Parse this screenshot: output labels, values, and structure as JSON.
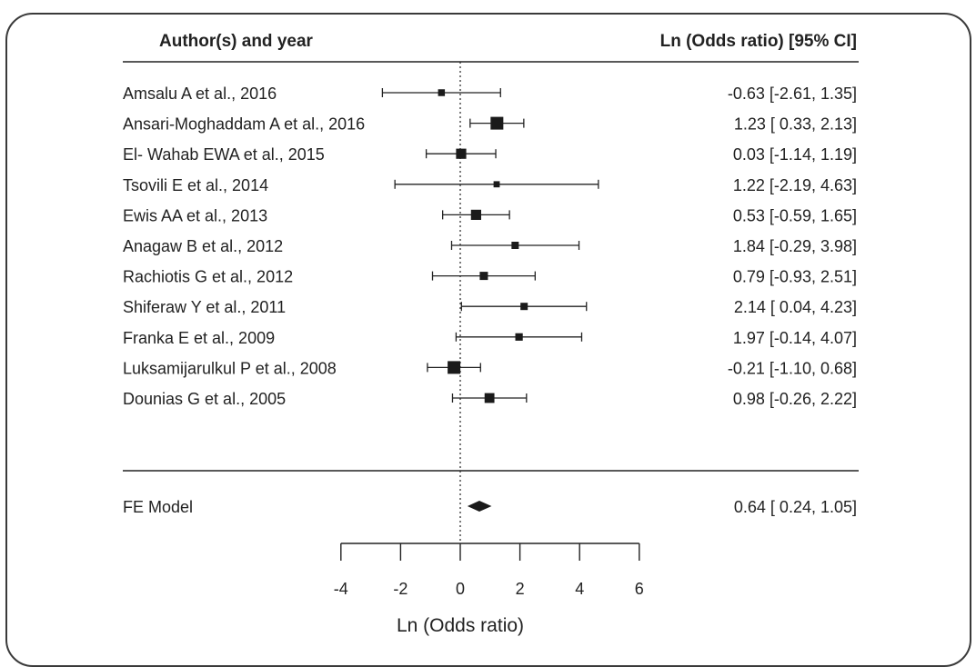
{
  "chart_data": {
    "type": "forest",
    "header_left": "Author(s) and year",
    "header_right": "Ln (Odds ratio) [95% CI]",
    "xlabel": "Ln (Odds ratio)",
    "xlim": [
      -4,
      6
    ],
    "xticks": [
      -4,
      -2,
      0,
      2,
      4,
      6
    ],
    "reference_line": 0,
    "studies": [
      {
        "label": "Amsalu A et al., 2016",
        "estimate": -0.63,
        "lower": -2.61,
        "upper": 1.35,
        "text": "-0.63 [-2.61, 1.35]",
        "weight": 0.35
      },
      {
        "label": "Ansari-Moghaddam A et al., 2016",
        "estimate": 1.23,
        "lower": 0.33,
        "upper": 2.13,
        "text": "1.23 [ 0.33, 2.13]",
        "weight": 1.0
      },
      {
        "label": "El- Wahab EWA et al., 2015",
        "estimate": 0.03,
        "lower": -1.14,
        "upper": 1.19,
        "text": "0.03 [-1.14, 1.19]",
        "weight": 0.72
      },
      {
        "label": "Tsovili E et al., 2014",
        "estimate": 1.22,
        "lower": -2.19,
        "upper": 4.63,
        "text": "1.22 [-2.19, 4.63]",
        "weight": 0.28
      },
      {
        "label": "Ewis AA et al., 2013",
        "estimate": 0.53,
        "lower": -0.59,
        "upper": 1.65,
        "text": "0.53 [-0.59, 1.65]",
        "weight": 0.72
      },
      {
        "label": "Anagaw B et al., 2012",
        "estimate": 1.84,
        "lower": -0.29,
        "upper": 3.98,
        "text": "1.84 [-0.29, 3.98]",
        "weight": 0.4
      },
      {
        "label": "Rachiotis G et al., 2012",
        "estimate": 0.79,
        "lower": -0.93,
        "upper": 2.51,
        "text": "0.79 [-0.93, 2.51]",
        "weight": 0.5
      },
      {
        "label": "Shiferaw Y et al., 2011",
        "estimate": 2.14,
        "lower": 0.04,
        "upper": 4.23,
        "text": "2.14 [ 0.04, 4.23]",
        "weight": 0.4
      },
      {
        "label": "Franka E et al., 2009",
        "estimate": 1.97,
        "lower": -0.14,
        "upper": 4.07,
        "text": "1.97 [-0.14, 4.07]",
        "weight": 0.42
      },
      {
        "label": "Luksamijarulkul P et al., 2008",
        "estimate": -0.21,
        "lower": -1.1,
        "upper": 0.68,
        "text": "-0.21 [-1.10, 0.68]",
        "weight": 1.0
      },
      {
        "label": "Dounias G et al., 2005",
        "estimate": 0.98,
        "lower": -0.26,
        "upper": 2.22,
        "text": "0.98 [-0.26, 2.22]",
        "weight": 0.68
      }
    ],
    "summary": {
      "label": "FE Model",
      "estimate": 0.64,
      "lower": 0.24,
      "upper": 1.05,
      "text": "0.64 [ 0.24, 1.05]"
    }
  }
}
